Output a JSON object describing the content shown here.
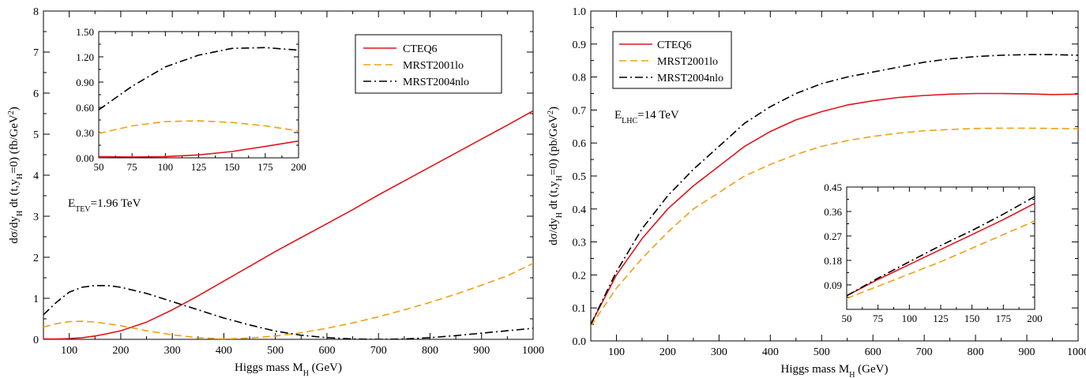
{
  "colors": {
    "CTEQ6": "#e0151b",
    "MRST2001lo": "#f0a015",
    "MRST2004nlo": "#000000"
  },
  "chart_data": [
    {
      "type": "line",
      "xlabel_main": "Higgs mass M",
      "xlabel_sub": "H",
      "xlabel_unit": " (GeV)",
      "ylabel": "dσ/dy_H dt (t,y_H=0) (fb/GeV^2)",
      "xlim": [
        50,
        1000
      ],
      "ylim": [
        0,
        8
      ],
      "xticks": [
        "100",
        "200",
        "300",
        "400",
        "500",
        "600",
        "700",
        "800",
        "900",
        "1000"
      ],
      "yticks": [
        "0",
        "1",
        "2",
        "3",
        "4",
        "5",
        "6",
        "7",
        "8"
      ],
      "legend": [
        "CTEQ6",
        "MRST2001lo",
        "MRST2004nlo"
      ],
      "annotation_main": "E",
      "annotation_sub": "TEV",
      "annotation_rest": "=1.96 TeV",
      "series": [
        {
          "name": "CTEQ6",
          "x": [
            50,
            75,
            100,
            125,
            150,
            175,
            200,
            250,
            300,
            350,
            400,
            450,
            500,
            550,
            600,
            650,
            700,
            750,
            800,
            850,
            900,
            950,
            1000
          ],
          "y": [
            0.01,
            0.01,
            0.02,
            0.04,
            0.08,
            0.14,
            0.21,
            0.42,
            0.72,
            1.06,
            1.42,
            1.78,
            2.14,
            2.48,
            2.82,
            3.16,
            3.52,
            3.86,
            4.2,
            4.54,
            4.88,
            5.22,
            5.57
          ]
        },
        {
          "name": "MRST2001lo",
          "x": [
            50,
            75,
            100,
            125,
            150,
            175,
            200,
            250,
            300,
            350,
            400,
            450,
            500,
            550,
            600,
            650,
            700,
            750,
            800,
            850,
            900,
            950,
            1000
          ],
          "y": [
            0.3,
            0.38,
            0.43,
            0.44,
            0.42,
            0.38,
            0.33,
            0.21,
            0.11,
            0.04,
            0.01,
            0.03,
            0.08,
            0.16,
            0.27,
            0.4,
            0.55,
            0.72,
            0.9,
            1.1,
            1.32,
            1.55,
            1.85
          ]
        },
        {
          "name": "MRST2004nlo",
          "x": [
            50,
            75,
            100,
            125,
            150,
            175,
            200,
            250,
            300,
            350,
            400,
            450,
            500,
            550,
            600,
            650,
            700,
            750,
            800,
            850,
            900,
            950,
            1000
          ],
          "y": [
            0.6,
            0.9,
            1.15,
            1.27,
            1.31,
            1.31,
            1.27,
            1.12,
            0.92,
            0.72,
            0.52,
            0.35,
            0.2,
            0.1,
            0.04,
            0.01,
            0.0,
            0.01,
            0.04,
            0.09,
            0.15,
            0.21,
            0.27
          ]
        }
      ]
    },
    {
      "type": "line",
      "inset_of": 0,
      "xlim": [
        50,
        200
      ],
      "ylim": [
        0,
        1.5
      ],
      "xticks": [
        "50",
        "75",
        "100",
        "125",
        "150",
        "175",
        "200"
      ],
      "yticks": [
        "0.00",
        "0.30",
        "0.60",
        "0.90",
        "1.20",
        "1.50"
      ],
      "series": [
        {
          "name": "CTEQ6",
          "x": [
            50,
            75,
            100,
            125,
            150,
            175,
            200
          ],
          "y": [
            0.015,
            0.01,
            0.015,
            0.035,
            0.075,
            0.135,
            0.2
          ]
        },
        {
          "name": "MRST2001lo",
          "x": [
            50,
            75,
            100,
            125,
            150,
            175,
            200
          ],
          "y": [
            0.29,
            0.38,
            0.43,
            0.44,
            0.42,
            0.38,
            0.32
          ]
        },
        {
          "name": "MRST2004nlo",
          "x": [
            50,
            75,
            100,
            125,
            150,
            175,
            200
          ],
          "y": [
            0.57,
            0.85,
            1.08,
            1.22,
            1.3,
            1.31,
            1.28
          ]
        }
      ]
    },
    {
      "type": "line",
      "xlabel_main": "Higgs mass M",
      "xlabel_sub": "H",
      "xlabel_unit": " (GeV)",
      "ylabel": "dσ/dy_H dt (t,y_H=0) (pb/GeV^2)",
      "xlim": [
        50,
        1000
      ],
      "ylim": [
        0,
        1.0
      ],
      "xticks": [
        "100",
        "200",
        "300",
        "400",
        "500",
        "600",
        "700",
        "800",
        "900",
        "1000"
      ],
      "yticks": [
        "0.0",
        "0.1",
        "0.2",
        "0.3",
        "0.4",
        "0.5",
        "0.6",
        "0.7",
        "0.8",
        "0.9",
        "1.0"
      ],
      "legend": [
        "CTEQ6",
        "MRST2001lo",
        "MRST2004nlo"
      ],
      "annotation_main": "E",
      "annotation_sub": "LHC",
      "annotation_rest": "=14 TeV",
      "series": [
        {
          "name": "CTEQ6",
          "x": [
            50,
            100,
            150,
            200,
            250,
            300,
            350,
            400,
            450,
            500,
            550,
            600,
            650,
            700,
            750,
            800,
            850,
            900,
            950,
            1000
          ],
          "y": [
            0.05,
            0.2,
            0.31,
            0.4,
            0.47,
            0.53,
            0.59,
            0.635,
            0.67,
            0.695,
            0.715,
            0.728,
            0.738,
            0.744,
            0.748,
            0.75,
            0.75,
            0.749,
            0.747,
            0.748
          ]
        },
        {
          "name": "MRST2001lo",
          "x": [
            50,
            100,
            150,
            200,
            250,
            300,
            350,
            400,
            450,
            500,
            550,
            600,
            650,
            700,
            750,
            800,
            850,
            900,
            950,
            1000
          ],
          "y": [
            0.045,
            0.16,
            0.25,
            0.33,
            0.4,
            0.45,
            0.5,
            0.535,
            0.565,
            0.59,
            0.607,
            0.62,
            0.63,
            0.637,
            0.641,
            0.644,
            0.645,
            0.645,
            0.644,
            0.643
          ]
        },
        {
          "name": "MRST2004nlo",
          "x": [
            50,
            100,
            150,
            200,
            250,
            300,
            350,
            400,
            450,
            500,
            550,
            600,
            650,
            700,
            750,
            800,
            850,
            900,
            950,
            1000
          ],
          "y": [
            0.05,
            0.21,
            0.34,
            0.44,
            0.52,
            0.59,
            0.66,
            0.71,
            0.75,
            0.78,
            0.8,
            0.815,
            0.83,
            0.845,
            0.855,
            0.862,
            0.866,
            0.868,
            0.868,
            0.866
          ]
        }
      ]
    },
    {
      "type": "line",
      "inset_of": 2,
      "xlim": [
        50,
        200
      ],
      "ylim": [
        0.0,
        0.45
      ],
      "xticks": [
        "50",
        "75",
        "100",
        "125",
        "150",
        "175",
        "200"
      ],
      "yticks": [
        "0.09",
        "0.18",
        "0.27",
        "0.36",
        "0.45"
      ],
      "series": [
        {
          "name": "CTEQ6",
          "x": [
            50,
            75,
            100,
            125,
            150,
            175,
            200
          ],
          "y": [
            0.05,
            0.11,
            0.165,
            0.22,
            0.275,
            0.33,
            0.39
          ]
        },
        {
          "name": "MRST2001lo",
          "x": [
            50,
            75,
            100,
            125,
            150,
            175,
            200
          ],
          "y": [
            0.04,
            0.085,
            0.13,
            0.175,
            0.225,
            0.275,
            0.325
          ]
        },
        {
          "name": "MRST2004nlo",
          "x": [
            50,
            75,
            100,
            125,
            150,
            175,
            200
          ],
          "y": [
            0.05,
            0.115,
            0.175,
            0.235,
            0.29,
            0.35,
            0.415
          ]
        }
      ]
    }
  ]
}
